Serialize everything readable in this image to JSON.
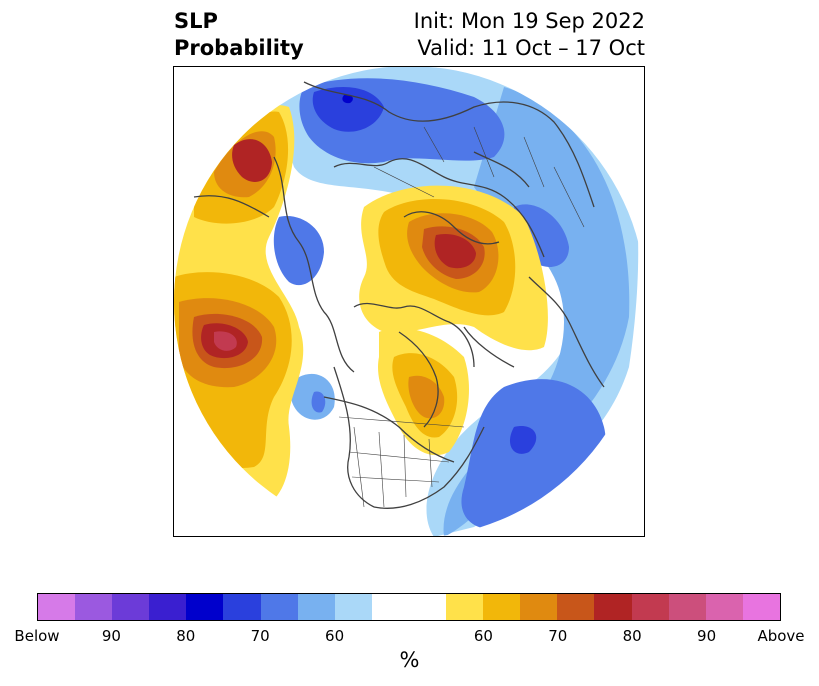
{
  "title": {
    "left_line1": "SLP",
    "left_line2": "Probability",
    "right_line1": "Init: Mon 19 Sep 2022",
    "right_line2": "Valid: 11 Oct – 17 Oct"
  },
  "colorbar": {
    "colors": [
      "#d67ae8",
      "#9b59e0",
      "#6c3bd8",
      "#3a1fd0",
      "#0000cc",
      "#2a40dd",
      "#4f78e8",
      "#78b1f0",
      "#aad8f8",
      "#ffffff",
      "#ffffff",
      "#ffe14a",
      "#f2b70a",
      "#e08a10",
      "#c8561a",
      "#b02424",
      "#c23a50",
      "#cc4f7c",
      "#da63ae",
      "#e874e0"
    ],
    "labels": [
      "Below",
      "90",
      "80",
      "70",
      "60",
      "60",
      "70",
      "80",
      "90",
      "Above"
    ],
    "unit": "%"
  },
  "map": {
    "projection": "north-polar-stereographic",
    "features": [
      "coastlines",
      "country-borders",
      "us-state-borders"
    ],
    "anomalies": [
      {
        "name": "north-pacific-high",
        "sign": "above",
        "peak": "80-90"
      },
      {
        "name": "gulf-of-alaska-high",
        "sign": "above",
        "peak": "75-80"
      },
      {
        "name": "eurasian-arctic-high",
        "sign": "above",
        "peak": "75-80"
      },
      {
        "name": "hudson-bay-high",
        "sign": "above",
        "peak": "65-70"
      },
      {
        "name": "north-atlantic-low",
        "sign": "below",
        "peak": "70-75"
      },
      {
        "name": "north-eurasia-low",
        "sign": "below",
        "peak": "80-90"
      },
      {
        "name": "east-siberia-low",
        "sign": "below",
        "peak": "65-70"
      },
      {
        "name": "west-canada-low",
        "sign": "below",
        "peak": "65-70"
      }
    ]
  }
}
